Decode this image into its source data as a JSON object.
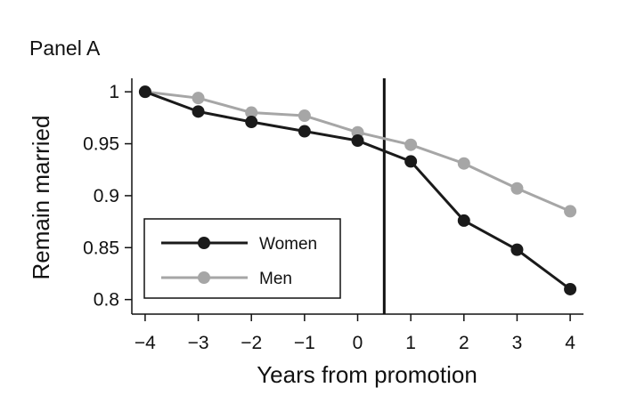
{
  "chart_data": {
    "type": "line",
    "title": "Panel A",
    "xlabel": "Years from promotion",
    "ylabel": "Remain married",
    "x": [
      -4,
      -3,
      -2,
      -1,
      0,
      1,
      2,
      3,
      4
    ],
    "xticks": [
      "−4",
      "−3",
      "−2",
      "−1",
      "0",
      "1",
      "2",
      "3",
      "4"
    ],
    "yticks": [
      "1",
      "0.95",
      "0.9",
      "0.85",
      "0.8"
    ],
    "xlim": [
      -4.25,
      4.25
    ],
    "ylim": [
      0.786,
      1.013
    ],
    "vline": 0.5,
    "legend_position": "bottom-left",
    "grid": false,
    "series": [
      {
        "name": "Women",
        "color": "#1a1a1a",
        "values": [
          1.0,
          0.981,
          0.971,
          0.962,
          0.953,
          0.933,
          0.876,
          0.848,
          0.81
        ]
      },
      {
        "name": "Men",
        "color": "#a6a6a6",
        "values": [
          1.0,
          0.994,
          0.98,
          0.977,
          0.961,
          0.949,
          0.931,
          0.907,
          0.885
        ]
      }
    ]
  }
}
